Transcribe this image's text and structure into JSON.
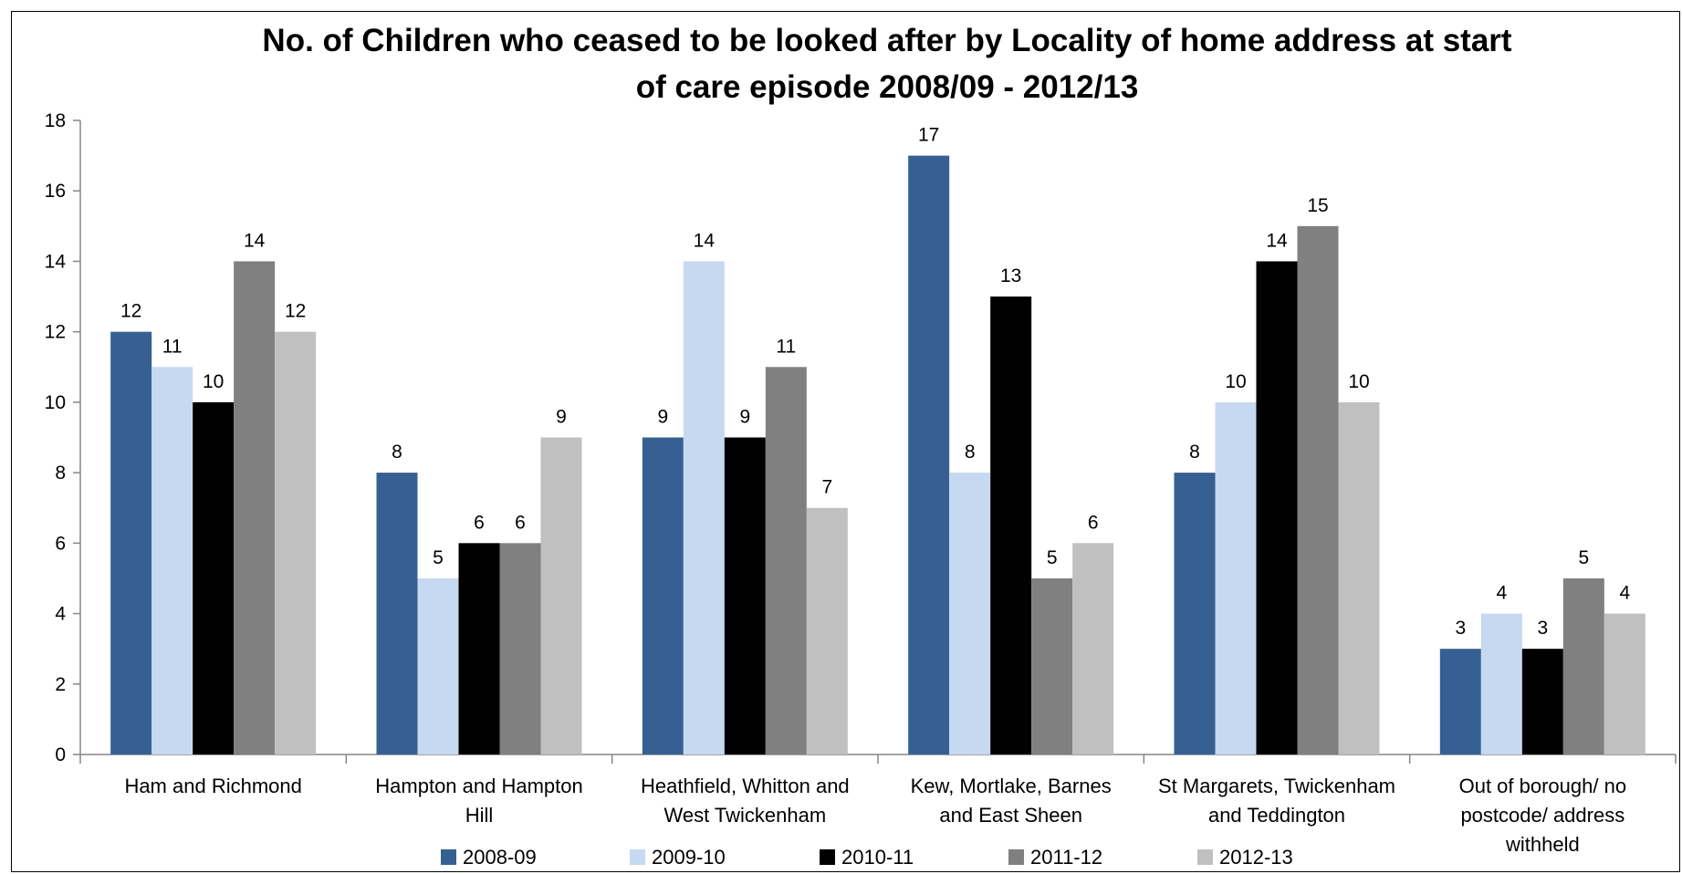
{
  "chart_data": {
    "type": "bar",
    "title": "No. of Children who ceased to be looked after by Locality of home address at start of care episode  2008/09 - 2012/13",
    "title_lines": [
      "No. of Children who ceased to be looked after by Locality of home address at start",
      "of care episode  2008/09 - 2012/13"
    ],
    "categories": [
      [
        "Ham and Richmond"
      ],
      [
        "Hampton and Hampton",
        "Hill"
      ],
      [
        "Heathfield, Whitton and",
        "West Twickenham"
      ],
      [
        "Kew, Mortlake, Barnes",
        "and East Sheen"
      ],
      [
        "St Margarets, Twickenham",
        "and Teddington"
      ],
      [
        "Out of borough/ no",
        "postcode/ address",
        "withheld"
      ]
    ],
    "series": [
      {
        "name": "2008-09",
        "color": "#366092",
        "values": [
          12,
          8,
          9,
          17,
          8,
          3
        ]
      },
      {
        "name": "2009-10",
        "color": "#c6d9f1",
        "values": [
          11,
          5,
          14,
          8,
          10,
          4
        ]
      },
      {
        "name": "2010-11",
        "color": "#000000",
        "values": [
          10,
          6,
          9,
          13,
          14,
          3
        ]
      },
      {
        "name": "2011-12",
        "color": "#808080",
        "values": [
          14,
          6,
          11,
          5,
          15,
          5
        ]
      },
      {
        "name": "2012-13",
        "color": "#c0c0c0",
        "values": [
          12,
          9,
          7,
          6,
          10,
          4
        ]
      }
    ],
    "ylim": [
      0,
      18
    ],
    "yticks": [
      0,
      2,
      4,
      6,
      8,
      10,
      12,
      14,
      16,
      18
    ],
    "xlabel": "",
    "ylabel": "",
    "grid": false,
    "legend_position": "bottom",
    "data_labels": true
  }
}
